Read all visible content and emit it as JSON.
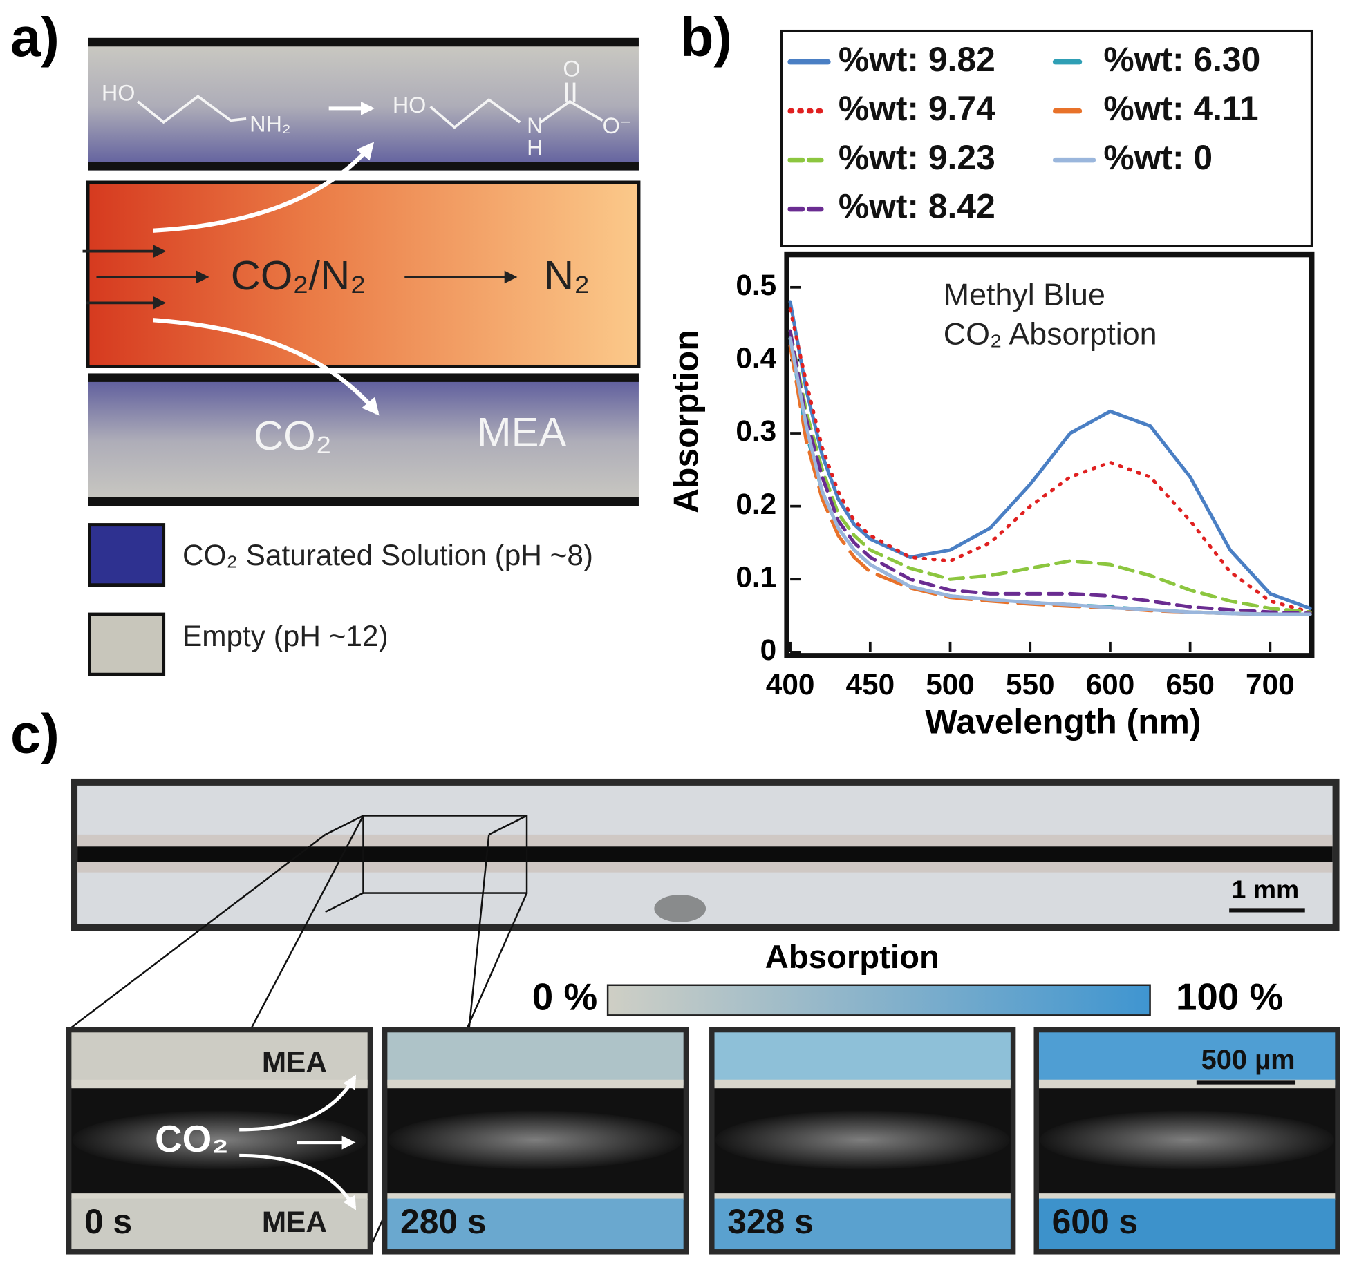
{
  "panel_a": {
    "label": "a)",
    "reactant": {
      "ho": "HO",
      "amine": "NH₂"
    },
    "product": {
      "ho": "HO",
      "n": "N",
      "h": "H",
      "carbonyl_o": "O",
      "oxide": "O⁻"
    },
    "gas_in": "CO₂/N₂",
    "gas_out": "N₂",
    "channel_labels": [
      "CO₂",
      "MEA"
    ],
    "legend": [
      "CO₂ Saturated Solution (pH ~8)",
      "Empty (pH ~12)"
    ]
  },
  "chart_data": {
    "type": "line",
    "panel_label": "b)",
    "annotation": [
      "Methyl Blue",
      "CO₂ Absorption"
    ],
    "x_label": "Wavelength (nm)",
    "y_label": "Absorption",
    "xlim": [
      400,
      725
    ],
    "ylim": [
      0,
      0.54
    ],
    "xticks": [
      400,
      450,
      500,
      550,
      600,
      650,
      700
    ],
    "yticks": [
      0,
      0.1,
      0.2,
      0.3,
      0.4,
      0.5
    ],
    "legend": "above",
    "x": [
      400,
      410,
      420,
      430,
      440,
      450,
      475,
      500,
      525,
      550,
      575,
      600,
      625,
      650,
      675,
      700,
      725
    ],
    "series": [
      {
        "name": "%wt: 9.82",
        "color": "#4a7fc4",
        "style": "solid",
        "values": [
          0.48,
          0.36,
          0.27,
          0.21,
          0.175,
          0.155,
          0.13,
          0.14,
          0.17,
          0.23,
          0.3,
          0.33,
          0.31,
          0.24,
          0.14,
          0.08,
          0.06
        ]
      },
      {
        "name": "%wt: 9.74",
        "color": "#e02020",
        "style": "dotted",
        "values": [
          0.47,
          0.37,
          0.28,
          0.22,
          0.18,
          0.16,
          0.13,
          0.125,
          0.15,
          0.2,
          0.24,
          0.26,
          0.24,
          0.18,
          0.11,
          0.07,
          0.055
        ]
      },
      {
        "name": "%wt: 9.23",
        "color": "#8cc63f",
        "style": "dashed",
        "values": [
          0.44,
          0.33,
          0.25,
          0.19,
          0.16,
          0.14,
          0.115,
          0.1,
          0.105,
          0.115,
          0.125,
          0.12,
          0.105,
          0.085,
          0.07,
          0.06,
          0.055
        ]
      },
      {
        "name": "%wt: 8.42",
        "color": "#6a2c91",
        "style": "dashed",
        "values": [
          0.44,
          0.32,
          0.24,
          0.18,
          0.15,
          0.13,
          0.1,
          0.085,
          0.08,
          0.08,
          0.08,
          0.077,
          0.07,
          0.062,
          0.058,
          0.055,
          0.053
        ]
      },
      {
        "name": "%wt: 6.30",
        "color": "#2f9fb5",
        "style": "long-dashed",
        "values": [
          0.43,
          0.3,
          0.22,
          0.17,
          0.14,
          0.12,
          0.09,
          0.077,
          0.072,
          0.068,
          0.065,
          0.062,
          0.058,
          0.055,
          0.053,
          0.052,
          0.052
        ]
      },
      {
        "name": "%wt: 4.11",
        "color": "#e8722a",
        "style": "long-dashed",
        "values": [
          0.42,
          0.29,
          0.21,
          0.16,
          0.13,
          0.11,
          0.088,
          0.075,
          0.07,
          0.066,
          0.063,
          0.061,
          0.057,
          0.055,
          0.053,
          0.052,
          0.052
        ]
      },
      {
        "name": "%wt: 0",
        "color": "#9ab6dc",
        "style": "solid",
        "values": [
          0.43,
          0.31,
          0.22,
          0.17,
          0.14,
          0.12,
          0.09,
          0.077,
          0.072,
          0.068,
          0.065,
          0.061,
          0.058,
          0.055,
          0.053,
          0.052,
          0.052
        ]
      }
    ]
  },
  "panel_c": {
    "label": "c)",
    "overview_scale": "1 mm",
    "colorbar": {
      "title": "Absorption",
      "min_label": "0 %",
      "max_label": "100 %"
    },
    "inset_labels": {
      "top": "MEA",
      "bottom": "MEA",
      "gas": "CO₂"
    },
    "detail_scale": "500 µm",
    "times": [
      "0 s",
      "280 s",
      "328 s",
      "600 s"
    ]
  }
}
